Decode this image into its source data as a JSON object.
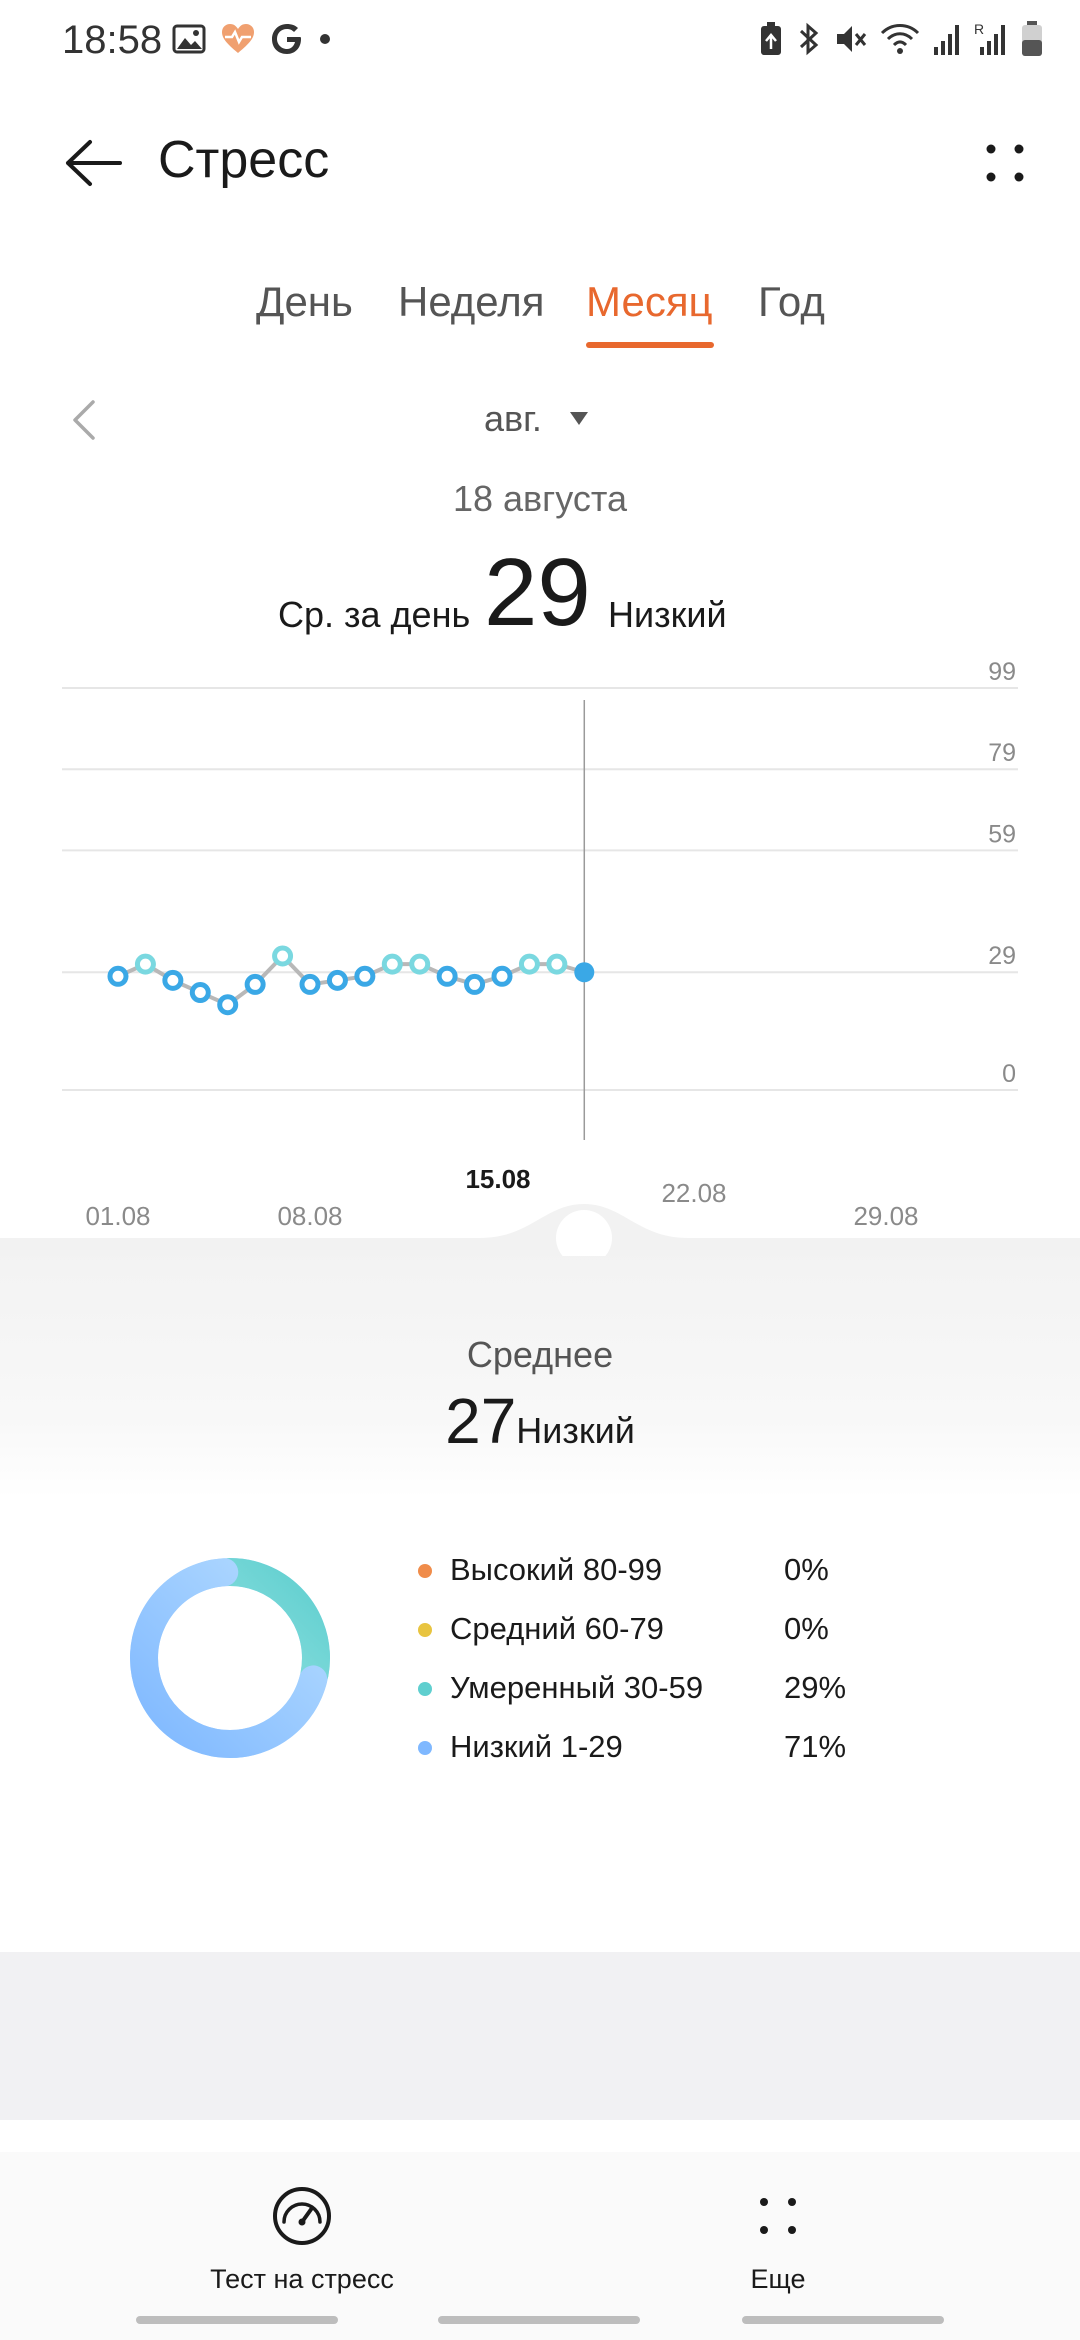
{
  "status_bar": {
    "time": "18:58",
    "left_icons": [
      "gallery-icon",
      "health-heart-icon",
      "google-icon",
      "dot-icon"
    ],
    "right_icons": [
      "battery-saver-icon",
      "bluetooth-icon",
      "mute-icon",
      "wifi-icon",
      "signal-icon",
      "roaming-signal-icon",
      "battery-icon"
    ],
    "roaming_mark": "R"
  },
  "app_bar": {
    "title": "Стресс"
  },
  "tabs": [
    {
      "label": "День",
      "active": false
    },
    {
      "label": "Неделя",
      "active": false
    },
    {
      "label": "Месяц",
      "active": true
    },
    {
      "label": "Год",
      "active": false
    }
  ],
  "period": {
    "label": "авг."
  },
  "selection": {
    "date": "18 августа",
    "avg_label": "Ср. за день",
    "value": "29",
    "level": "Низкий"
  },
  "colors": {
    "accent": "#e8682e",
    "low": "#7fb8ff",
    "moderate": "#5fcfcf",
    "medium": "#e8c440",
    "high": "#f08c4a",
    "point_low": "#3aa8e6",
    "point_moderate": "#7ad8e0"
  },
  "chart_data": {
    "type": "line",
    "y_ticks": [
      "99",
      "79",
      "59",
      "29",
      "0"
    ],
    "ylim": [
      0,
      99
    ],
    "x_tick_labels": [
      "01.08",
      "08.08",
      "15.08",
      "22.08",
      "29.08"
    ],
    "highlighted_x_label": "15.08",
    "x": [
      1,
      2,
      3,
      4,
      5,
      6,
      7,
      8,
      9,
      10,
      11,
      12,
      13,
      14,
      15,
      16,
      17,
      18
    ],
    "values": [
      28,
      31,
      27,
      24,
      21,
      26,
      33,
      26,
      27,
      28,
      31,
      31,
      28,
      26,
      28,
      31,
      31,
      29
    ],
    "selected_day": 18,
    "xlim": [
      0,
      31
    ]
  },
  "summary": {
    "title": "Среднее",
    "value": "27",
    "level": "Низкий"
  },
  "distribution": [
    {
      "label": "Высокий 80-99",
      "percent": "0%",
      "value": 0,
      "color": "#f08c4a"
    },
    {
      "label": "Средний 60-79",
      "percent": "0%",
      "value": 0,
      "color": "#e8c440"
    },
    {
      "label": "Умеренный 30-59",
      "percent": "29%",
      "value": 29,
      "color": "#5fcfcf"
    },
    {
      "label": "Низкий 1-29",
      "percent": "71%",
      "value": 71,
      "color": "#7fb8ff"
    }
  ],
  "actions": [
    {
      "label": "Тест на стресс",
      "icon": "speedometer-icon"
    },
    {
      "label": "Еще",
      "icon": "more-dots-icon"
    }
  ]
}
